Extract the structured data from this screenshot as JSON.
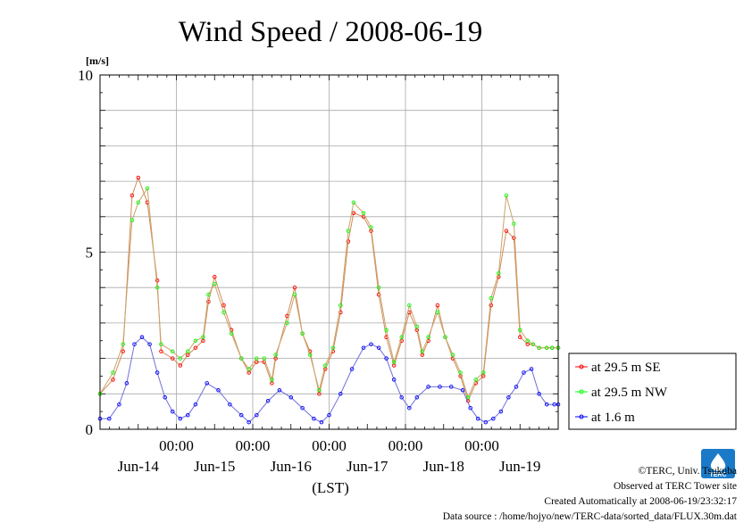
{
  "chart_data": {
    "type": "line",
    "title": "Wind Speed / 2008-06-19",
    "yunit": "[m/s]",
    "xlabel": "(LST)",
    "ylim": [
      0,
      10
    ],
    "yticks": [
      {
        "value": 0,
        "label": "0"
      },
      {
        "value": 5,
        "label": "5"
      },
      {
        "value": 10,
        "label": "10"
      }
    ],
    "y_gridlines": [
      1,
      2,
      3,
      4,
      5,
      6,
      7,
      8,
      9
    ],
    "time_ticks": [
      "00:00",
      "00:00",
      "00:00",
      "00:00",
      "00:00"
    ],
    "day_labels": [
      "Jun-14",
      "Jun-15",
      "Jun-16",
      "Jun-17",
      "Jun-18",
      "Jun-19"
    ],
    "x_range_days": [
      0,
      6
    ],
    "grid": true,
    "legend_position": "right",
    "series": [
      {
        "name": "at 29.5 m SE",
        "color": "#ff0000",
        "x": [
          0,
          0.17,
          0.3,
          0.42,
          0.5,
          0.62,
          0.75,
          0.8,
          0.95,
          1.05,
          1.15,
          1.25,
          1.35,
          1.42,
          1.5,
          1.62,
          1.72,
          1.85,
          1.95,
          2.05,
          2.15,
          2.25,
          2.3,
          2.45,
          2.55,
          2.65,
          2.75,
          2.87,
          2.95,
          3.05,
          3.15,
          3.25,
          3.32,
          3.45,
          3.55,
          3.65,
          3.75,
          3.85,
          3.95,
          4.05,
          4.15,
          4.22,
          4.3,
          4.42,
          4.52,
          4.62,
          4.72,
          4.82,
          4.92,
          5.02,
          5.12,
          5.22,
          5.32,
          5.42,
          5.5,
          5.6,
          5.67,
          5.75,
          5.85,
          5.92,
          6.0
        ],
        "values": [
          1.0,
          1.4,
          2.2,
          6.6,
          7.1,
          6.4,
          4.2,
          2.2,
          2.0,
          1.8,
          2.1,
          2.3,
          2.5,
          3.6,
          4.3,
          3.5,
          2.8,
          2.0,
          1.6,
          1.9,
          1.9,
          1.3,
          2.0,
          3.2,
          4.0,
          2.7,
          2.2,
          1.0,
          1.7,
          2.2,
          3.3,
          5.3,
          6.1,
          6.0,
          5.6,
          3.8,
          2.6,
          1.8,
          2.5,
          3.3,
          2.8,
          2.1,
          2.5,
          3.5,
          2.6,
          2.0,
          1.5,
          0.8,
          1.3,
          1.5,
          3.5,
          4.3,
          5.6,
          5.4,
          2.6,
          2.4,
          2.4,
          2.3,
          2.3,
          2.3,
          2.3
        ]
      },
      {
        "name": "at 29.5 m NW",
        "color": "#00ff00",
        "x": [
          0,
          0.17,
          0.3,
          0.42,
          0.5,
          0.62,
          0.75,
          0.8,
          0.95,
          1.05,
          1.15,
          1.25,
          1.35,
          1.42,
          1.5,
          1.62,
          1.72,
          1.85,
          1.95,
          2.05,
          2.15,
          2.25,
          2.3,
          2.45,
          2.55,
          2.65,
          2.75,
          2.87,
          2.95,
          3.05,
          3.15,
          3.25,
          3.32,
          3.45,
          3.55,
          3.65,
          3.75,
          3.85,
          3.95,
          4.05,
          4.15,
          4.22,
          4.3,
          4.42,
          4.52,
          4.62,
          4.72,
          4.82,
          4.92,
          5.02,
          5.12,
          5.22,
          5.32,
          5.42,
          5.5,
          5.6,
          5.67,
          5.75,
          5.85,
          5.92,
          6.0
        ],
        "values": [
          1.0,
          1.6,
          2.4,
          5.9,
          6.4,
          6.8,
          4.0,
          2.4,
          2.2,
          2.0,
          2.2,
          2.5,
          2.6,
          3.8,
          4.1,
          3.3,
          2.7,
          2.0,
          1.7,
          2.0,
          2.0,
          1.4,
          2.1,
          3.0,
          3.8,
          2.7,
          2.1,
          1.1,
          1.8,
          2.3,
          3.5,
          5.6,
          6.4,
          6.1,
          5.7,
          4.0,
          2.8,
          1.9,
          2.6,
          3.5,
          2.9,
          2.2,
          2.6,
          3.3,
          2.6,
          2.1,
          1.6,
          0.9,
          1.4,
          1.6,
          3.7,
          4.4,
          6.6,
          5.8,
          2.8,
          2.5,
          2.4,
          2.3,
          2.3,
          2.3,
          2.3
        ]
      },
      {
        "name": "at 1.6 m",
        "color": "#0000ff",
        "x": [
          0,
          0.12,
          0.25,
          0.35,
          0.45,
          0.55,
          0.65,
          0.75,
          0.85,
          0.95,
          1.05,
          1.15,
          1.25,
          1.4,
          1.55,
          1.7,
          1.85,
          1.95,
          2.05,
          2.2,
          2.35,
          2.5,
          2.65,
          2.8,
          2.9,
          3.0,
          3.15,
          3.3,
          3.45,
          3.55,
          3.65,
          3.75,
          3.85,
          3.95,
          4.05,
          4.15,
          4.3,
          4.45,
          4.6,
          4.75,
          4.85,
          4.95,
          5.05,
          5.15,
          5.25,
          5.35,
          5.45,
          5.55,
          5.65,
          5.75,
          5.85,
          5.95,
          6.0
        ],
        "values": [
          0.3,
          0.3,
          0.7,
          1.3,
          2.4,
          2.6,
          2.4,
          1.6,
          0.9,
          0.5,
          0.3,
          0.4,
          0.7,
          1.3,
          1.1,
          0.7,
          0.4,
          0.2,
          0.4,
          0.8,
          1.1,
          0.9,
          0.6,
          0.3,
          0.2,
          0.4,
          1.0,
          1.7,
          2.3,
          2.4,
          2.3,
          2.0,
          1.4,
          0.9,
          0.6,
          0.9,
          1.2,
          1.2,
          1.2,
          1.1,
          0.6,
          0.3,
          0.2,
          0.3,
          0.5,
          0.9,
          1.2,
          1.6,
          1.7,
          1.0,
          0.7,
          0.7,
          0.7
        ]
      }
    ]
  },
  "footer": {
    "copyright": "©TERC, Univ. Tsukuba",
    "observed": "Observed at TERC Tower site",
    "created": "Created Automatically at 2008-06-19/23:32:17",
    "source": "Data source : /home/hojyo/new/TERC-data/sorted_data/FLUX.30m.dat",
    "logo_text": "TERC"
  }
}
